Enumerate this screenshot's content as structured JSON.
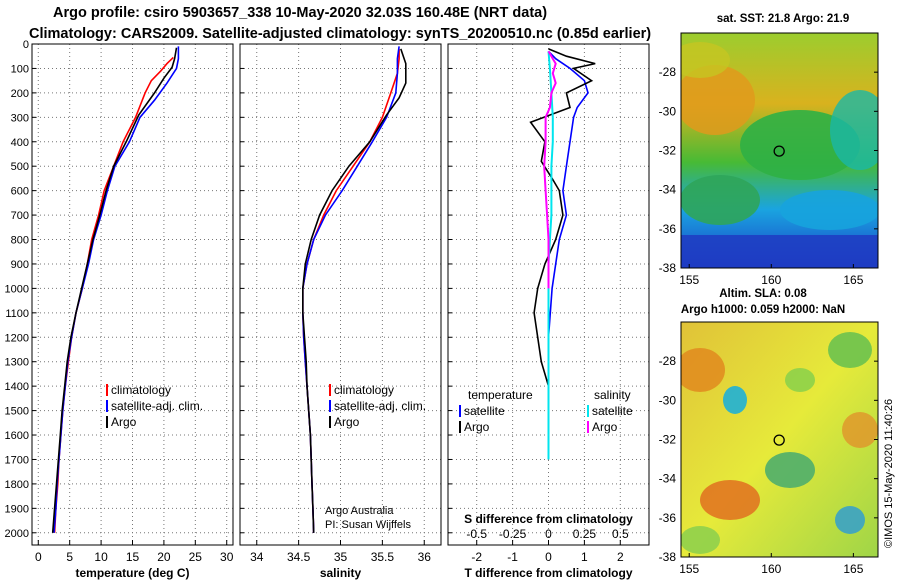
{
  "header": {
    "line1": "Argo profile: csiro 5903657_338 10-May-2020 32.03S 160.48E (NRT data)",
    "line2": "Climatology: CARS2009. Satellite-adjusted climatology: synTS_20200510.nc (0.85d earlier)"
  },
  "colors": {
    "climatology": "#ff0000",
    "satellite": "#0000ff",
    "argo": "#000000",
    "sal_satellite": "#00e5ee",
    "sal_argo": "#ff00ff"
  },
  "chart_data": [
    {
      "type": "line",
      "name": "temperature-profile",
      "xlabel": "temperature (deg C)",
      "ylabel": "",
      "xlim": [
        -1,
        31
      ],
      "ylim": [
        2050,
        0
      ],
      "xticks": [
        0,
        5,
        10,
        15,
        20,
        25,
        30
      ],
      "yticks": [
        0,
        100,
        200,
        300,
        400,
        500,
        600,
        700,
        800,
        900,
        1000,
        1100,
        1200,
        1300,
        1400,
        1500,
        1600,
        1700,
        1800,
        1900,
        2000
      ],
      "grid": true,
      "legend": [
        "climatology",
        "satellite-adj. clim.",
        "Argo"
      ],
      "legend_position": "lower-right",
      "series": [
        {
          "name": "climatology",
          "color": "#ff0000",
          "points": [
            [
              21.5,
              55
            ],
            [
              20.5,
              80
            ],
            [
              19.5,
              110
            ],
            [
              18,
              150
            ],
            [
              17,
              200
            ],
            [
              15.5,
              300
            ],
            [
              13.5,
              400
            ],
            [
              12,
              500
            ],
            [
              10.5,
              600
            ],
            [
              9.6,
              700
            ],
            [
              8.5,
              800
            ],
            [
              7.8,
              900
            ],
            [
              7,
              1000
            ],
            [
              6,
              1100
            ],
            [
              5.3,
              1200
            ],
            [
              4.8,
              1300
            ],
            [
              4.3,
              1400
            ],
            [
              3.9,
              1500
            ],
            [
              3.6,
              1600
            ],
            [
              3.3,
              1700
            ],
            [
              3.1,
              1800
            ],
            [
              2.8,
              1900
            ],
            [
              2.6,
              2000
            ]
          ]
        },
        {
          "name": "satellite-adj. clim.",
          "color": "#0000ff",
          "points": [
            [
              22.3,
              10
            ],
            [
              22.3,
              60
            ],
            [
              22,
              100
            ],
            [
              20.5,
              160
            ],
            [
              18.5,
              230
            ],
            [
              16.2,
              300
            ],
            [
              14.5,
              400
            ],
            [
              12.2,
              500
            ],
            [
              11,
              600
            ],
            [
              10,
              700
            ],
            [
              8.8,
              800
            ],
            [
              8,
              900
            ],
            [
              7,
              1000
            ],
            [
              6,
              1100
            ],
            [
              5.3,
              1200
            ],
            [
              4.7,
              1300
            ],
            [
              4.3,
              1400
            ],
            [
              3.9,
              1500
            ],
            [
              3.6,
              1600
            ],
            [
              3.3,
              1700
            ],
            [
              3,
              1800
            ],
            [
              2.8,
              1900
            ],
            [
              2.5,
              2000
            ]
          ]
        },
        {
          "name": "Argo",
          "color": "#000000",
          "points": [
            [
              22,
              15
            ],
            [
              21.7,
              60
            ],
            [
              21.3,
              95
            ],
            [
              20,
              140
            ],
            [
              18.5,
              200
            ],
            [
              16,
              290
            ],
            [
              14,
              400
            ],
            [
              12,
              500
            ],
            [
              10.8,
              600
            ],
            [
              9.8,
              700
            ],
            [
              8.7,
              800
            ],
            [
              7.8,
              900
            ],
            [
              6.9,
              1000
            ],
            [
              6,
              1100
            ],
            [
              5.2,
              1200
            ],
            [
              4.6,
              1300
            ],
            [
              4.2,
              1400
            ],
            [
              3.8,
              1500
            ],
            [
              3.5,
              1600
            ],
            [
              3.2,
              1700
            ],
            [
              2.9,
              1800
            ],
            [
              2.6,
              1900
            ],
            [
              2.3,
              2000
            ]
          ]
        }
      ]
    },
    {
      "type": "line",
      "name": "salinity-profile",
      "xlabel": "salinity",
      "xlim": [
        33.8,
        36.2
      ],
      "ylim": [
        2050,
        0
      ],
      "xticks": [
        34,
        34.5,
        35,
        35.5,
        36
      ],
      "xtick_labels": [
        "34",
        "34.5",
        "35",
        "35.5",
        "36"
      ],
      "grid": true,
      "legend": [
        "climatology",
        "satellite-adj. clim.",
        "Argo"
      ],
      "legend_position": "lower-right",
      "annotation": [
        "Argo Australia",
        "PI: Susan Wijffels"
      ],
      "series": [
        {
          "name": "climatology",
          "color": "#ff0000",
          "points": [
            [
              35.7,
              20
            ],
            [
              35.7,
              60
            ],
            [
              35.68,
              120
            ],
            [
              35.6,
              200
            ],
            [
              35.5,
              300
            ],
            [
              35.35,
              400
            ],
            [
              35.15,
              500
            ],
            [
              34.95,
              600
            ],
            [
              34.8,
              700
            ],
            [
              34.68,
              800
            ],
            [
              34.6,
              900
            ],
            [
              34.55,
              1000
            ],
            [
              34.55,
              1100
            ],
            [
              34.56,
              1200
            ],
            [
              34.58,
              1300
            ],
            [
              34.6,
              1400
            ],
            [
              34.62,
              1500
            ],
            [
              34.64,
              1600
            ],
            [
              34.65,
              1700
            ],
            [
              34.66,
              1800
            ],
            [
              34.67,
              1900
            ],
            [
              34.68,
              2000
            ]
          ]
        },
        {
          "name": "satellite-adj. clim.",
          "color": "#0000ff",
          "points": [
            [
              35.7,
              10
            ],
            [
              35.68,
              60
            ],
            [
              35.68,
              120
            ],
            [
              35.66,
              200
            ],
            [
              35.55,
              300
            ],
            [
              35.38,
              400
            ],
            [
              35.2,
              500
            ],
            [
              35.02,
              600
            ],
            [
              34.82,
              700
            ],
            [
              34.68,
              800
            ],
            [
              34.6,
              900
            ],
            [
              34.55,
              1000
            ],
            [
              34.55,
              1100
            ],
            [
              34.56,
              1200
            ],
            [
              34.58,
              1300
            ],
            [
              34.6,
              1400
            ],
            [
              34.62,
              1500
            ],
            [
              34.64,
              1600
            ],
            [
              34.65,
              1700
            ],
            [
              34.66,
              1800
            ],
            [
              34.67,
              1900
            ],
            [
              34.68,
              2000
            ]
          ]
        },
        {
          "name": "Argo",
          "color": "#000000",
          "points": [
            [
              35.72,
              20
            ],
            [
              35.78,
              80
            ],
            [
              35.78,
              160
            ],
            [
              35.7,
              220
            ],
            [
              35.55,
              290
            ],
            [
              35.35,
              400
            ],
            [
              35.1,
              500
            ],
            [
              34.9,
              600
            ],
            [
              34.75,
              700
            ],
            [
              34.65,
              800
            ],
            [
              34.58,
              900
            ],
            [
              34.55,
              1000
            ],
            [
              34.55,
              1100
            ],
            [
              34.57,
              1200
            ],
            [
              34.59,
              1300
            ],
            [
              34.6,
              1400
            ],
            [
              34.62,
              1500
            ],
            [
              34.64,
              1600
            ],
            [
              34.65,
              1700
            ],
            [
              34.66,
              1800
            ],
            [
              34.67,
              1900
            ],
            [
              34.68,
              2000
            ]
          ]
        }
      ]
    },
    {
      "type": "line",
      "name": "difference-profile",
      "xlabel": "T difference from climatology",
      "secondary_xlabel": "S difference from climatology",
      "xlim": [
        -2.8,
        2.8
      ],
      "secondary_xlim": [
        -0.7,
        0.7
      ],
      "ylim": [
        2050,
        0
      ],
      "xticks": [
        -2,
        -1,
        0,
        1,
        2
      ],
      "secondary_xticks": [
        -0.5,
        -0.25,
        0,
        0.25,
        0.5
      ],
      "secondary_xtick_labels": [
        "-0.5",
        "-0.25",
        "0",
        "0.25",
        "0.5"
      ],
      "grid": true,
      "legend_temperature_title": "temperature",
      "legend_salinity_title": "salinity",
      "legend": [
        "satellite",
        "Argo",
        "satellite",
        "Argo"
      ],
      "legend_position": "lower-center",
      "series": [
        {
          "name": "T satellite",
          "color": "#0000ff",
          "points": [
            [
              0,
              30
            ],
            [
              0.2,
              60
            ],
            [
              0.6,
              100
            ],
            [
              1.0,
              150
            ],
            [
              1.1,
              200
            ],
            [
              0.8,
              260
            ],
            [
              0.7,
              300
            ],
            [
              0.6,
              400
            ],
            [
              0.5,
              500
            ],
            [
              0.4,
              600
            ],
            [
              0.5,
              700
            ],
            [
              0.3,
              800
            ],
            [
              0.2,
              900
            ],
            [
              0.1,
              1000
            ],
            [
              0.05,
              1100
            ],
            [
              0,
              1200
            ],
            [
              0,
              1300
            ],
            [
              0,
              1400
            ],
            [
              0,
              1500
            ]
          ]
        },
        {
          "name": "T Argo",
          "color": "#000000",
          "points": [
            [
              0,
              20
            ],
            [
              0.5,
              50
            ],
            [
              1.3,
              80
            ],
            [
              0.7,
              100
            ],
            [
              1.2,
              150
            ],
            [
              0.5,
              200
            ],
            [
              0.6,
              260
            ],
            [
              -0.5,
              320
            ],
            [
              -0.1,
              400
            ],
            [
              -0.2,
              480
            ],
            [
              0.1,
              550
            ],
            [
              0.3,
              600
            ],
            [
              0.4,
              700
            ],
            [
              0.2,
              800
            ],
            [
              -0.1,
              900
            ],
            [
              -0.3,
              1000
            ],
            [
              -0.4,
              1100
            ],
            [
              -0.3,
              1200
            ],
            [
              -0.2,
              1300
            ],
            [
              0,
              1400
            ],
            [
              0,
              1500
            ]
          ]
        },
        {
          "name": "S satellite",
          "color": "#00e5ee",
          "points": [
            [
              0,
              30
            ],
            [
              0.01,
              100
            ],
            [
              0.02,
              200
            ],
            [
              0.03,
              300
            ],
            [
              0.03,
              400
            ],
            [
              0.02,
              500
            ],
            [
              0.02,
              600
            ],
            [
              0.02,
              700
            ],
            [
              0.01,
              800
            ],
            [
              0,
              900
            ],
            [
              0,
              1000
            ],
            [
              0,
              1100
            ],
            [
              0,
              1200
            ],
            [
              0,
              1300
            ],
            [
              0,
              1400
            ],
            [
              0,
              1500
            ],
            [
              0,
              1600
            ],
            [
              0,
              1700
            ]
          ]
        },
        {
          "name": "S Argo",
          "color": "#ff00ff",
          "points": [
            [
              0,
              30
            ],
            [
              0.03,
              60
            ],
            [
              0.05,
              80
            ],
            [
              0.03,
              120
            ],
            [
              0.05,
              160
            ],
            [
              0.02,
              200
            ],
            [
              0.01,
              260
            ],
            [
              -0.02,
              300
            ],
            [
              -0.02,
              400
            ],
            [
              -0.03,
              500
            ],
            [
              -0.02,
              600
            ],
            [
              -0.01,
              700
            ],
            [
              0,
              800
            ],
            [
              0,
              900
            ],
            [
              0,
              1000
            ]
          ]
        }
      ]
    },
    {
      "type": "heatmap",
      "name": "sst-map",
      "title": "sat. SST: 21.8 Argo: 21.9",
      "xlim": [
        154.5,
        166.5
      ],
      "ylim": [
        -38,
        -26
      ],
      "xticks": [
        155,
        160,
        165
      ],
      "yticks": [
        -28,
        -30,
        -32,
        -34,
        -36,
        -38
      ],
      "argo_position": [
        160.48,
        -32.03
      ]
    },
    {
      "type": "heatmap",
      "name": "sla-map",
      "title_line1": "Altim. SLA: 0.08",
      "title_line2": "Argo h1000: 0.059 h2000: NaN",
      "xlim": [
        154.5,
        166.5
      ],
      "ylim": [
        -38,
        -26
      ],
      "xticks": [
        155,
        160,
        165
      ],
      "yticks": [
        -28,
        -30,
        -32,
        -34,
        -36,
        -38
      ],
      "argo_position": [
        160.48,
        -32.03
      ]
    }
  ],
  "footer": {
    "stamp": "©IMOS 15-May-2020 11:40:26"
  }
}
